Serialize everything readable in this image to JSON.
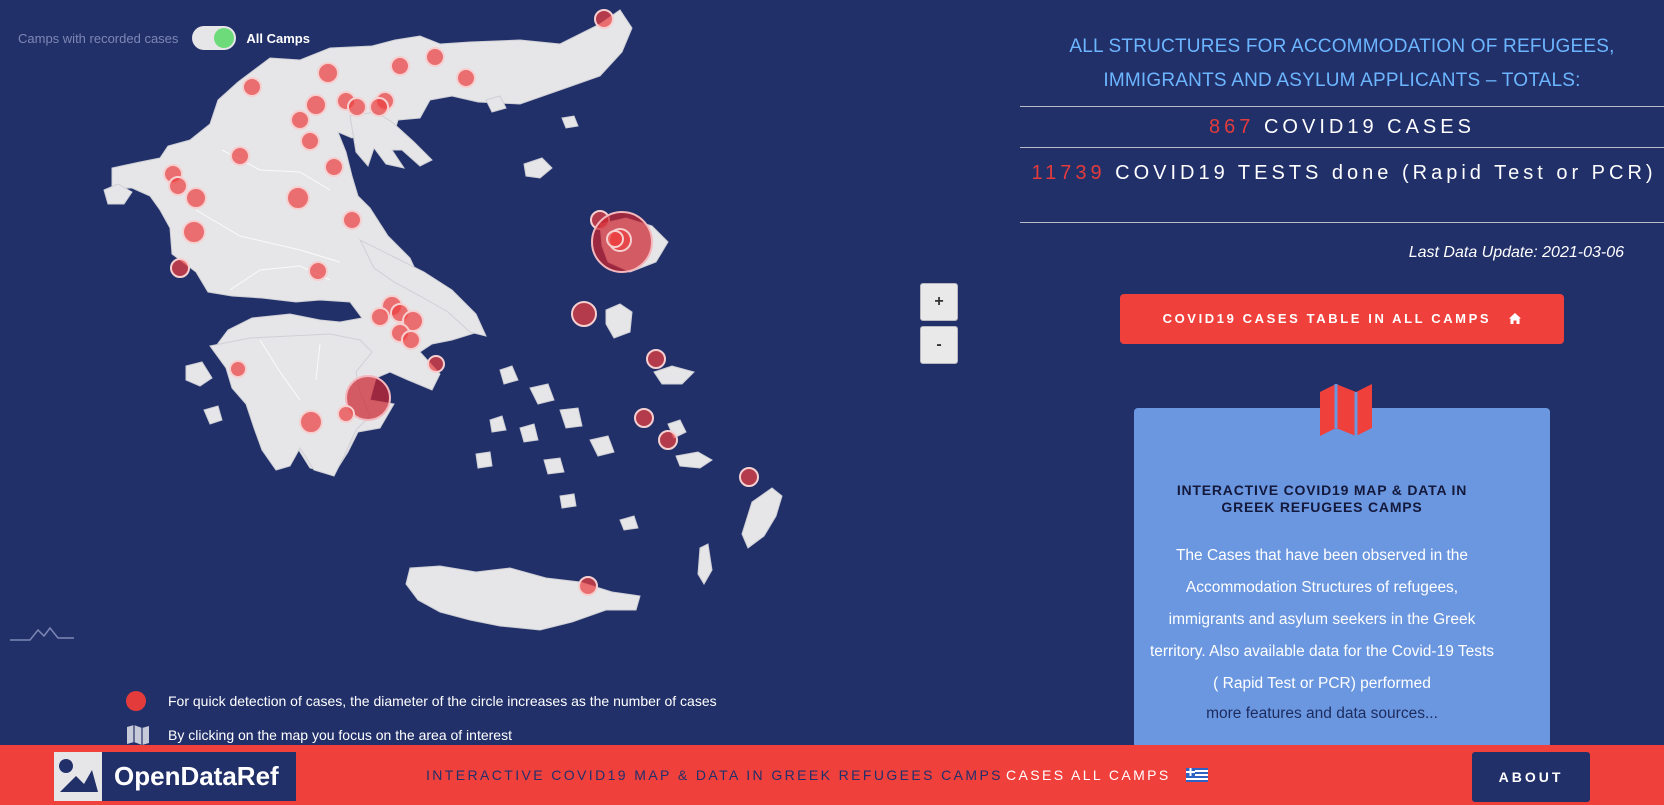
{
  "map": {
    "toggle": {
      "left_label": "Camps with recorded cases",
      "right_label": "All Camps",
      "state": "on"
    },
    "zoom": {
      "in_label": "+",
      "out_label": "-"
    },
    "legend": {
      "circle_text": "For quick detection of cases, the diameter of the circle increases as the number of cases",
      "click_text": "By clicking on the map you focus on the area of interest"
    },
    "colors": {
      "land": "#e6e6e8",
      "sea": "#22306a",
      "case_marker": "#e33b3b"
    }
  },
  "totals": {
    "title_line1": "ALL STRUCTURES FOR ACCOMMODATION OF REFUGEES,",
    "title_line2": "IMMIGRANTS AND ASYLUM APPLICANTS – TOTALS:",
    "cases_number": "867",
    "cases_label": "COVID19 CASES",
    "tests_number": "11739",
    "tests_label": "COVID19 TESTS done (Rapid Test or PCR)",
    "last_update": "Last Data Update: 2021-03-06"
  },
  "cases_table_button": {
    "label": "COVID19 CASES TABLE IN ALL CAMPS",
    "icon": "home-icon"
  },
  "info_card": {
    "icon": "map-icon",
    "title_line1": "INTERACTIVE COVID19 MAP & DATA IN",
    "title_line2": "GREEK REFUGEES CAMPS",
    "description": "The Cases that have been observed in the Accommodation Structures of refugees, immigrants and asylum seekers in the Greek territory. Also available data for the Covid-19 Tests ( Rapid Test or PCR) performed",
    "more_link": "more features and data sources..."
  },
  "footer": {
    "logo_text": "OpenDataRef",
    "nav_map": "INTERACTIVE COVID19 MAP & DATA IN GREEK REFUGEES CAMPS",
    "nav_cases": "CASES ALL CAMPS",
    "flag_icon": "greek-flag-icon",
    "about_label": "ABOUT",
    "colors": {
      "bar": "#f0403c",
      "button": "#22306a"
    }
  }
}
